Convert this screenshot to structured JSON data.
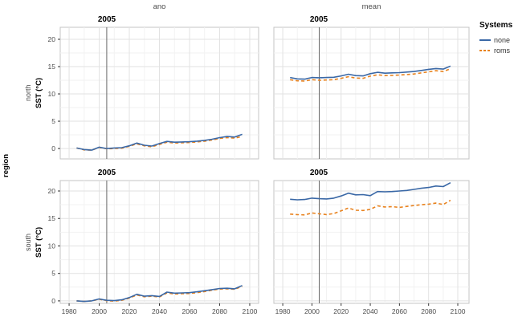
{
  "figure": {
    "col_headers": [
      "ano",
      "mean"
    ],
    "row_headers": [
      "north",
      "south"
    ],
    "outer_row_label": "region",
    "y_axis_title": "SST (°C)",
    "vline_label": "2005",
    "legend": {
      "title": "Systems",
      "items": [
        {
          "label": "none",
          "line_style": "solid"
        },
        {
          "label": "roms",
          "line_style": "dashed"
        }
      ]
    },
    "colors": {
      "none": "#3A68A6",
      "roms": "#E8821E",
      "vline": "#6A6A6A",
      "grid_major": "#E2E2E2",
      "grid_minor": "#F2F2F2",
      "panel_border": "#C4C4C4",
      "axis_text": "#4D4D4D",
      "tick_mark": "#333333"
    }
  },
  "chart_data": [
    {
      "panel": "north-ano",
      "row": "north",
      "col": "ano",
      "type": "line",
      "title": "2005",
      "xlabel": "",
      "ylabel": "SST (°C)",
      "vline_x": 2005,
      "xlim": [
        1974.1,
        2105.9
      ],
      "ylim": [
        -1.9,
        22.2
      ],
      "x_ticks": [
        1980,
        2000,
        2020,
        2040,
        2060,
        2080,
        2100
      ],
      "y_ticks": [
        0,
        5,
        10,
        15,
        20
      ],
      "x": [
        1985,
        1990,
        1995,
        2000,
        2005,
        2010,
        2015,
        2020,
        2025,
        2030,
        2035,
        2040,
        2045,
        2050,
        2055,
        2060,
        2065,
        2070,
        2075,
        2080,
        2085,
        2090,
        2095
      ],
      "series": [
        {
          "name": "none",
          "values": [
            0.1,
            -0.2,
            -0.3,
            0.25,
            0.0,
            0.1,
            0.15,
            0.5,
            1.0,
            0.6,
            0.45,
            0.9,
            1.3,
            1.15,
            1.2,
            1.25,
            1.35,
            1.5,
            1.7,
            2.0,
            2.2,
            2.1,
            2.6
          ]
        },
        {
          "name": "roms",
          "values": [
            0.1,
            -0.25,
            -0.3,
            0.2,
            -0.05,
            0.0,
            0.05,
            0.4,
            0.85,
            0.5,
            0.3,
            0.75,
            1.15,
            1.0,
            1.05,
            1.1,
            1.2,
            1.35,
            1.55,
            1.85,
            2.0,
            1.9,
            2.2
          ]
        }
      ]
    },
    {
      "panel": "north-mean",
      "row": "north",
      "col": "mean",
      "type": "line",
      "title": "2005",
      "xlabel": "",
      "ylabel": "SST (°C)",
      "vline_x": 2005,
      "xlim": [
        1973.9,
        2107.7
      ],
      "ylim": [
        -1.9,
        22.2
      ],
      "x_ticks": [
        1980,
        2000,
        2020,
        2040,
        2060,
        2080,
        2100
      ],
      "y_ticks": [
        0,
        5,
        10,
        15,
        20
      ],
      "x": [
        1985,
        1990,
        1995,
        2000,
        2005,
        2010,
        2015,
        2020,
        2025,
        2030,
        2035,
        2040,
        2045,
        2050,
        2055,
        2060,
        2065,
        2070,
        2075,
        2080,
        2085,
        2090,
        2095
      ],
      "series": [
        {
          "name": "none",
          "values": [
            13.0,
            12.75,
            12.7,
            13.0,
            12.95,
            13.0,
            13.05,
            13.3,
            13.6,
            13.35,
            13.3,
            13.7,
            13.95,
            13.8,
            13.85,
            13.9,
            14.0,
            14.1,
            14.3,
            14.5,
            14.65,
            14.55,
            15.1
          ]
        },
        {
          "name": "roms",
          "values": [
            12.6,
            12.4,
            12.35,
            12.6,
            12.5,
            12.55,
            12.6,
            12.85,
            13.15,
            12.9,
            12.85,
            13.25,
            13.5,
            13.35,
            13.4,
            13.45,
            13.55,
            13.65,
            13.85,
            14.05,
            14.25,
            14.1,
            14.6
          ]
        }
      ]
    },
    {
      "panel": "south-ano",
      "row": "south",
      "col": "ano",
      "type": "line",
      "title": "2005",
      "xlabel": "",
      "ylabel": "SST (°C)",
      "vline_x": 2005,
      "xlim": [
        1974.1,
        2105.9
      ],
      "ylim": [
        -0.45,
        21.9
      ],
      "x_ticks": [
        1980,
        2000,
        2020,
        2040,
        2060,
        2080,
        2100
      ],
      "y_ticks": [
        0,
        5,
        10,
        15,
        20
      ],
      "x": [
        1985,
        1990,
        1995,
        2000,
        2005,
        2010,
        2015,
        2020,
        2025,
        2030,
        2035,
        2040,
        2045,
        2050,
        2055,
        2060,
        2065,
        2070,
        2075,
        2080,
        2085,
        2090,
        2095
      ],
      "series": [
        {
          "name": "none",
          "values": [
            0.0,
            -0.1,
            0.0,
            0.35,
            0.1,
            0.05,
            0.2,
            0.6,
            1.2,
            0.85,
            0.95,
            0.8,
            1.6,
            1.4,
            1.45,
            1.5,
            1.65,
            1.85,
            2.05,
            2.25,
            2.3,
            2.2,
            2.8
          ]
        },
        {
          "name": "roms",
          "values": [
            0.0,
            -0.1,
            0.0,
            0.3,
            0.05,
            -0.05,
            0.1,
            0.5,
            1.05,
            0.75,
            0.85,
            0.7,
            1.45,
            1.25,
            1.3,
            1.35,
            1.5,
            1.7,
            1.95,
            2.15,
            2.2,
            2.1,
            2.65
          ]
        }
      ]
    },
    {
      "panel": "south-mean",
      "row": "south",
      "col": "mean",
      "type": "line",
      "title": "2005",
      "xlabel": "",
      "ylabel": "SST (°C)",
      "vline_x": 2005,
      "xlim": [
        1973.9,
        2107.7
      ],
      "ylim": [
        -0.45,
        21.9
      ],
      "x_ticks": [
        1980,
        2000,
        2020,
        2040,
        2060,
        2080,
        2100
      ],
      "y_ticks": [
        0,
        5,
        10,
        15,
        20
      ],
      "x": [
        1985,
        1990,
        1995,
        2000,
        2005,
        2010,
        2015,
        2020,
        2025,
        2030,
        2035,
        2040,
        2045,
        2050,
        2055,
        2060,
        2065,
        2070,
        2075,
        2080,
        2085,
        2090,
        2095
      ],
      "series": [
        {
          "name": "none",
          "values": [
            18.5,
            18.4,
            18.45,
            18.7,
            18.6,
            18.55,
            18.7,
            19.1,
            19.6,
            19.3,
            19.35,
            19.15,
            19.9,
            19.85,
            19.9,
            20.0,
            20.1,
            20.3,
            20.5,
            20.65,
            20.9,
            20.8,
            21.5
          ]
        },
        {
          "name": "roms",
          "values": [
            15.8,
            15.7,
            15.65,
            16.0,
            15.85,
            15.7,
            15.9,
            16.4,
            16.9,
            16.5,
            16.45,
            16.65,
            17.3,
            17.1,
            17.15,
            17.0,
            17.2,
            17.35,
            17.5,
            17.6,
            17.8,
            17.55,
            18.3
          ]
        }
      ]
    }
  ]
}
